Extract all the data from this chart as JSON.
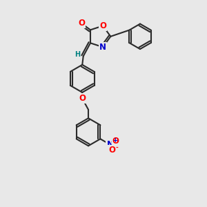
{
  "bg_color": "#e8e8e8",
  "bond_color": "#2a2a2a",
  "bond_width": 1.5,
  "atom_colors": {
    "O": "#ff0000",
    "N": "#0000cc",
    "H": "#008080",
    "C": "#2a2a2a"
  },
  "font_size_atom": 8.5,
  "font_size_small": 7.0
}
